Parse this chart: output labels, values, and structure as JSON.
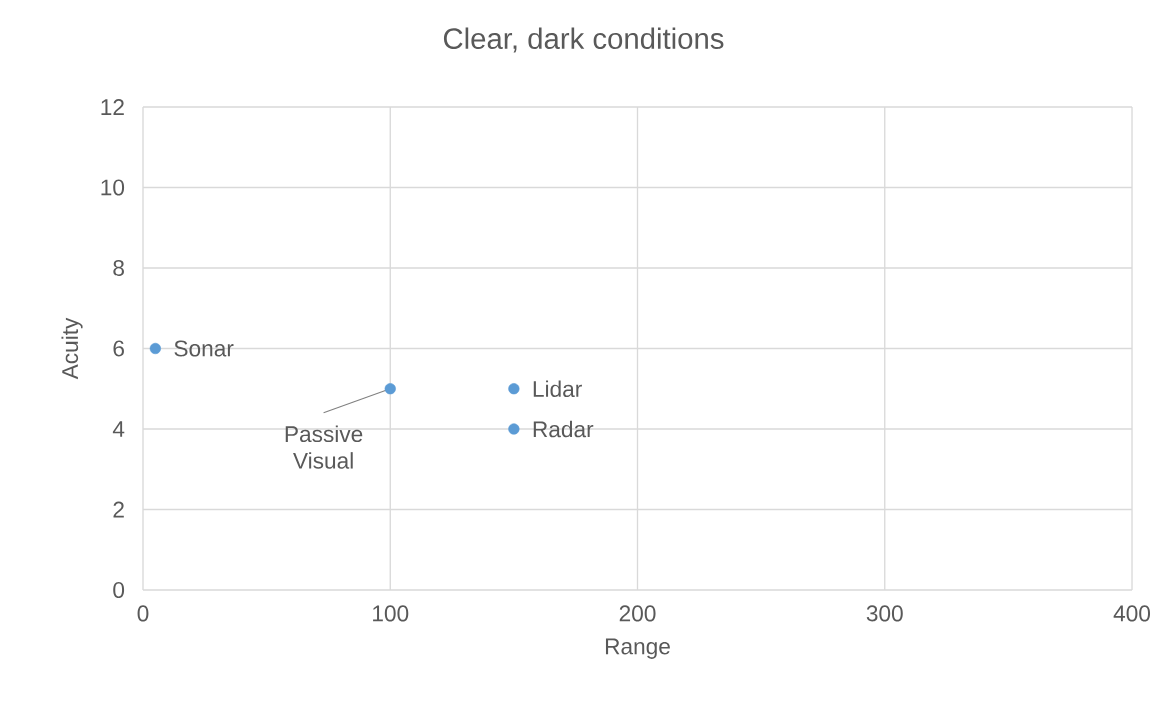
{
  "chart_data": {
    "type": "scatter",
    "title": "Clear, dark conditions",
    "xlabel": "Range",
    "ylabel": "Acuity",
    "series": [
      {
        "color": "#5b9bd5",
        "x": [
          5,
          100,
          150,
          150
        ],
        "values": [
          6,
          5,
          5,
          4
        ]
      }
    ],
    "annotations": [
      {
        "text": "Sonar",
        "x": 5,
        "y": 6
      },
      {
        "text": "Passive Visual",
        "x": 100,
        "y": 5
      },
      {
        "text": "Lidar",
        "x": 150,
        "y": 5
      },
      {
        "text": "Radar",
        "x": 150,
        "y": 4
      }
    ],
    "xlim": [
      0,
      400
    ],
    "ylim": [
      0,
      12
    ],
    "xticks": [
      0,
      100,
      200,
      300,
      400
    ],
    "yticks": [
      0,
      2,
      4,
      6,
      8,
      10,
      12
    ],
    "grid": true,
    "marker": "circle"
  }
}
